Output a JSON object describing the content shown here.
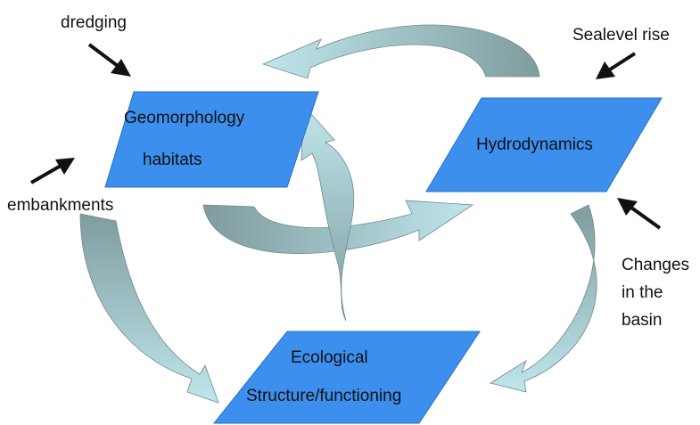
{
  "nodes": [
    {
      "label": [
        "Geomorphology",
        "habitats"
      ]
    },
    {
      "label": [
        "Hydrodynamics"
      ]
    },
    {
      "label": [
        "Ecological",
        "Structure/functioning"
      ]
    }
  ],
  "drivers": [
    {
      "label": [
        "dredging"
      ]
    },
    {
      "label": [
        "embankments"
      ]
    },
    {
      "label": [
        "Sealevel rise"
      ]
    },
    {
      "label": [
        "Changes",
        "in the",
        "basin"
      ]
    }
  ]
}
